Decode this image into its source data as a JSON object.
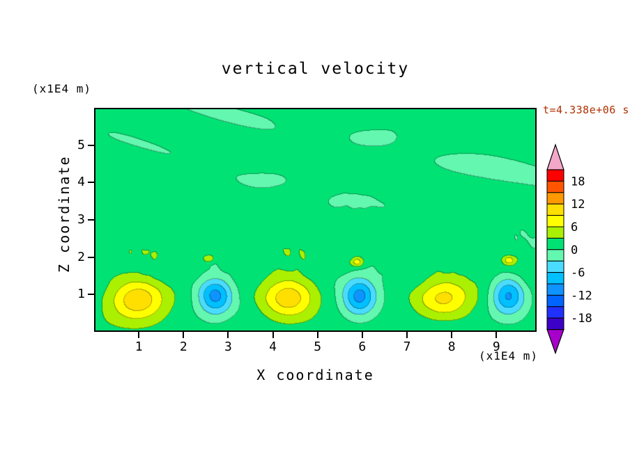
{
  "title": "vertical velocity",
  "timestamp": "t=4.338e+06 s",
  "axes": {
    "x_label": "X coordinate",
    "y_label": "Z coordinate",
    "x_unit": "(x1E4 m)",
    "y_unit": "(x1E4 m)"
  },
  "colors": {
    "timestamp": "#b03000",
    "frame": "#000000",
    "page_background": "#ffffff"
  },
  "chart_data": {
    "type": "heatmap",
    "title": "vertical velocity",
    "xlabel": "X coordinate",
    "ylabel": "Z coordinate",
    "x_unit_label": "(x1E4 m)",
    "y_unit_label": "(x1E4 m)",
    "time_annotation": "t=4.338e+06 s",
    "xlim": [
      0,
      9.9
    ],
    "ylim": [
      0,
      6.0
    ],
    "x_ticks": [
      1,
      2,
      3,
      4,
      5,
      6,
      7,
      8,
      9
    ],
    "y_ticks": [
      1,
      2,
      3,
      4,
      5
    ],
    "grid": false,
    "legend_position": "right-colorbar",
    "contour_levels": [
      -21,
      -18,
      -15,
      -12,
      -9,
      -6,
      -3,
      0,
      3,
      6,
      9,
      12,
      15,
      18,
      21
    ],
    "band_colors": [
      "#3c00c8",
      "#2030ff",
      "#0064ff",
      "#0f93ff",
      "#00c0ff",
      "#49dcff",
      "#63f7b0",
      "#00e273",
      "#aaf000",
      "#ffff00",
      "#ffdf00",
      "#ff9900",
      "#ff5500",
      "#ff0000"
    ],
    "under_arrow_color": "#a800cc",
    "over_arrow_color": "#f3a8c9",
    "colorbar_tick_labels": [
      "18",
      "12",
      "6",
      "0",
      "-6",
      "-12",
      "-18"
    ],
    "background_value_band": [
      0,
      3
    ],
    "streak_value_band": [
      -3,
      0
    ],
    "cells": [
      {
        "x": 0.95,
        "z": 0.85,
        "peak": 10.0,
        "sigma_x": 0.62,
        "sigma_z": 0.58,
        "kind": "updraft"
      },
      {
        "x": 2.7,
        "z": 0.95,
        "peak": -11.0,
        "sigma_x": 0.38,
        "sigma_z": 0.52,
        "kind": "downdraft"
      },
      {
        "x": 4.35,
        "z": 0.9,
        "peak": 10.0,
        "sigma_x": 0.6,
        "sigma_z": 0.57,
        "kind": "updraft"
      },
      {
        "x": 5.95,
        "z": 0.92,
        "peak": -11.0,
        "sigma_x": 0.37,
        "sigma_z": 0.5,
        "kind": "downdraft"
      },
      {
        "x": 7.85,
        "z": 0.9,
        "peak": 8.6,
        "sigma_x": 0.62,
        "sigma_z": 0.52,
        "kind": "updraft"
      },
      {
        "x": 9.3,
        "z": 0.95,
        "peak": -11.0,
        "sigma_x": 0.37,
        "sigma_z": 0.5,
        "kind": "downdraft"
      },
      {
        "x": 5.9,
        "z": 1.85,
        "peak": 6.8,
        "sigma_x": 0.15,
        "sigma_z": 0.13,
        "kind": "updraft-spot"
      },
      {
        "x": 9.32,
        "z": 1.9,
        "peak": 6.8,
        "sigma_x": 0.15,
        "sigma_z": 0.13,
        "kind": "updraft-spot"
      },
      {
        "x": 2.55,
        "z": 1.95,
        "peak": 4.8,
        "sigma_x": 0.13,
        "sigma_z": 0.11,
        "kind": "updraft-spot"
      }
    ]
  }
}
